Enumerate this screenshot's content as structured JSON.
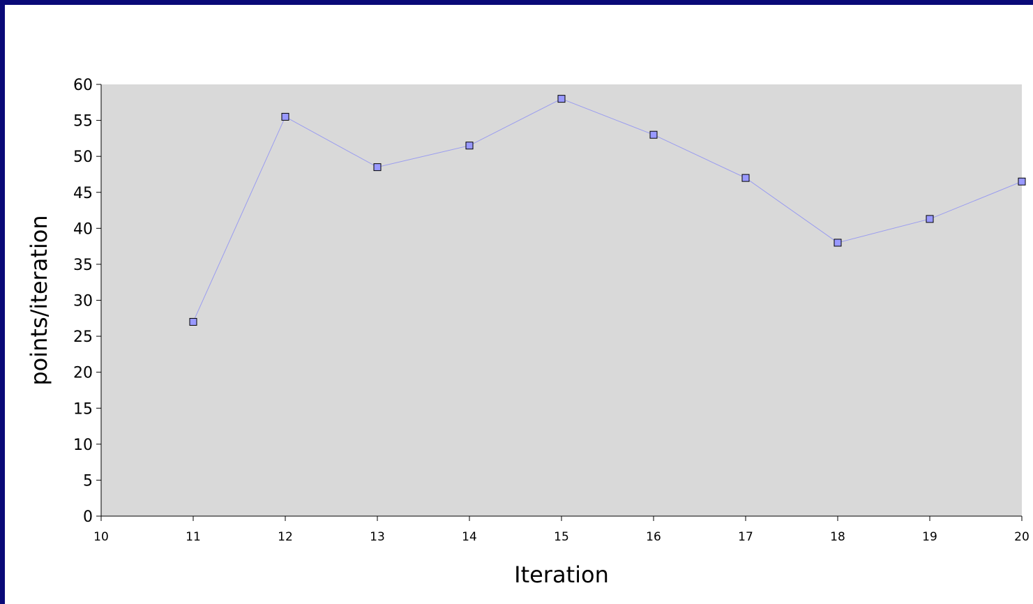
{
  "chart_data": {
    "type": "line",
    "title": "",
    "xlabel": "Iteration",
    "ylabel": "points/iteration",
    "xlim": [
      10,
      20
    ],
    "ylim": [
      0,
      60
    ],
    "x_ticks": [
      "10",
      "11",
      "12",
      "13",
      "14",
      "15",
      "16",
      "17",
      "18",
      "19",
      "20"
    ],
    "y_ticks": [
      "0",
      "5",
      "10",
      "15",
      "20",
      "25",
      "30",
      "35",
      "40",
      "45",
      "50",
      "55",
      "60"
    ],
    "grid": false,
    "legend": "none",
    "series": [
      {
        "x": [
          11,
          12,
          13,
          14,
          15,
          16,
          17,
          18,
          19,
          20
        ],
        "y": [
          27,
          55.5,
          48.5,
          51.5,
          58,
          53,
          47,
          38,
          41.3,
          46.5
        ]
      }
    ],
    "colors": {
      "frame": "#0a0a78",
      "plot_background": "#d9d9d9",
      "line": "#9a9cf0",
      "marker_fill": "#9999ff",
      "marker_stroke": "#000000",
      "axis": "#000000"
    }
  }
}
